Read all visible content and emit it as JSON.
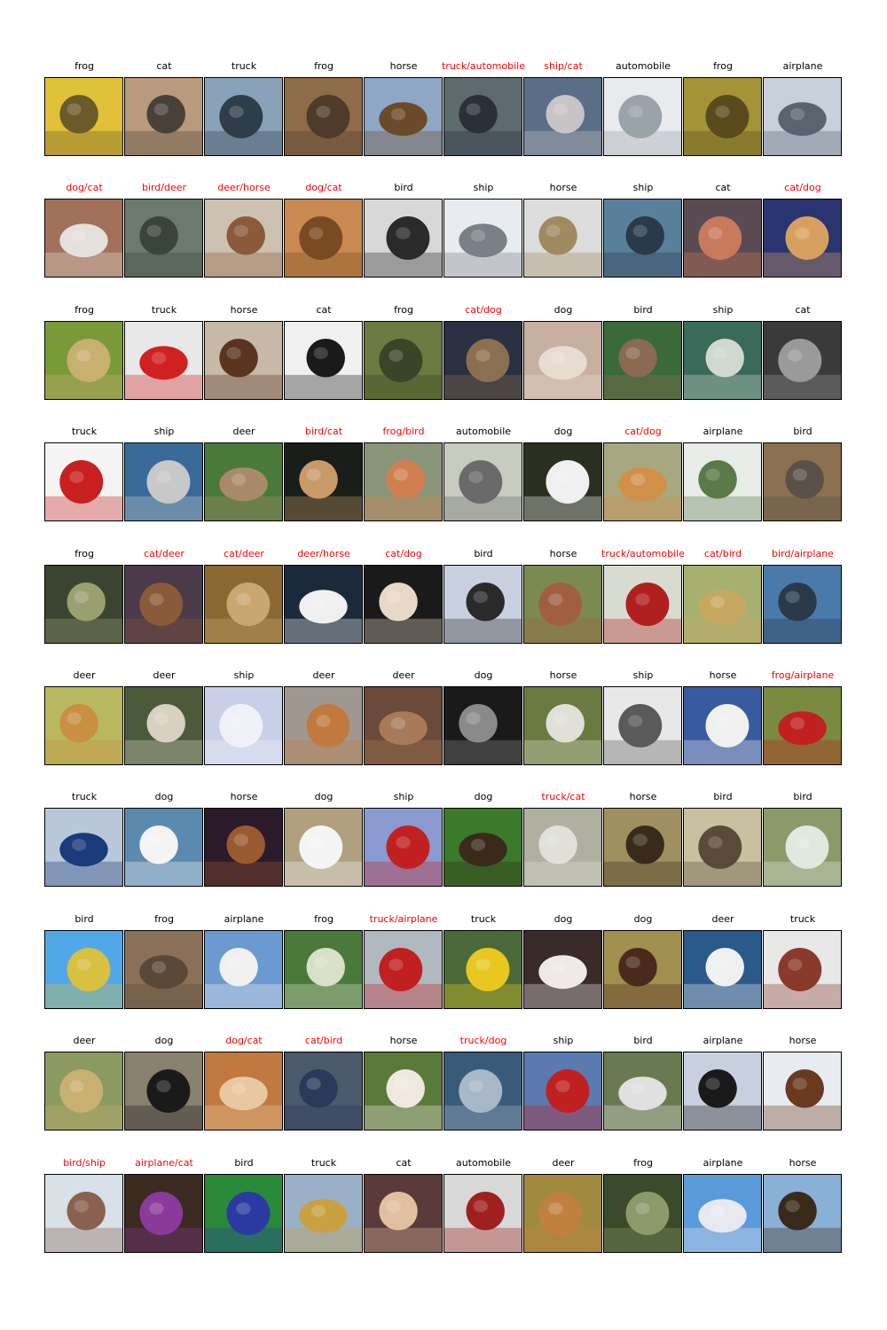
{
  "figure": {
    "mismatch_color": "#ff0000",
    "match_color": "#000000",
    "rows": [
      {
        "labels": [
          "frog",
          "cat",
          "truck",
          "frog",
          "horse",
          "truck/automobile",
          "ship/cat",
          "automobile",
          "frog",
          "airplane"
        ],
        "palette": [
          [
            "#e2c13a",
            "#6b5a2a"
          ],
          [
            "#b89a7c",
            "#4a4038"
          ],
          [
            "#8aa2b8",
            "#2f3d4a"
          ],
          [
            "#8f6c4a",
            "#4e3b2a"
          ],
          [
            "#8fa6c4",
            "#6b4a2a"
          ],
          [
            "#5d6a70",
            "#2a2f3a"
          ],
          [
            "#5a6e86",
            "#c8c4c6"
          ],
          [
            "#e8eaee",
            "#9aa2aa"
          ],
          [
            "#a39438",
            "#5a4a1e"
          ],
          [
            "#c8d0dc",
            "#5a6470"
          ]
        ]
      },
      {
        "labels": [
          "dog/cat",
          "bird/deer",
          "deer/horse",
          "dog/cat",
          "bird",
          "ship",
          "horse",
          "ship",
          "cat",
          "cat/dog"
        ],
        "palette": [
          [
            "#a0705a",
            "#e4e0dc"
          ],
          [
            "#6c7a6e",
            "#3a4438"
          ],
          [
            "#cdc2b2",
            "#8a5a3a"
          ],
          [
            "#c88a50",
            "#7a4a22"
          ],
          [
            "#d8d8d8",
            "#2a2a2a"
          ],
          [
            "#e8ecf0",
            "#7a8088"
          ],
          [
            "#dcdcdc",
            "#a08a60"
          ],
          [
            "#5a7f9a",
            "#2a3a4a"
          ],
          [
            "#5a4a52",
            "#c87a5a"
          ],
          [
            "#2a3470",
            "#d8a060"
          ]
        ]
      },
      {
        "labels": [
          "frog",
          "truck",
          "horse",
          "cat",
          "frog",
          "cat/dog",
          "dog",
          "bird",
          "ship",
          "cat"
        ],
        "palette": [
          [
            "#7a9a3a",
            "#c8b070"
          ],
          [
            "#e8e8e8",
            "#d02020"
          ],
          [
            "#c8b8a8",
            "#5a3420"
          ],
          [
            "#f0f0f0",
            "#1a1a1a"
          ],
          [
            "#6a7a40",
            "#3a4426"
          ],
          [
            "#2a3040",
            "#8a7050"
          ],
          [
            "#c8b0a0",
            "#e8dcd0"
          ],
          [
            "#3a6a3a",
            "#8a6a50"
          ],
          [
            "#3a6a5a",
            "#d0d8d0"
          ],
          [
            "#3a3a3a",
            "#9a9a9a"
          ]
        ]
      },
      {
        "labels": [
          "truck",
          "ship",
          "deer",
          "bird/cat",
          "frog/bird",
          "automobile",
          "dog",
          "cat/dog",
          "airplane",
          "bird"
        ],
        "palette": [
          [
            "#f4f4f4",
            "#c82020"
          ],
          [
            "#3a6a9a",
            "#c8c8c8"
          ],
          [
            "#4a7a3a",
            "#a88a6a"
          ],
          [
            "#1a1e1a",
            "#c89a6a"
          ],
          [
            "#8a9478",
            "#d08050"
          ],
          [
            "#c8ccc0",
            "#6a6a6a"
          ],
          [
            "#2a3020",
            "#f0f0f0"
          ],
          [
            "#a8a880",
            "#d0904a"
          ],
          [
            "#e8ece8",
            "#5a7a4a"
          ],
          [
            "#8a7050",
            "#5a5048"
          ]
        ]
      },
      {
        "labels": [
          "frog",
          "cat/deer",
          "cat/deer",
          "deer/horse",
          "cat/dog",
          "bird",
          "horse",
          "truck/automobile",
          "cat/bird",
          "bird/airplane"
        ],
        "palette": [
          [
            "#3a4430",
            "#9aa070"
          ],
          [
            "#4a3a4a",
            "#8a5a3a"
          ],
          [
            "#8a6a30",
            "#c8a870"
          ],
          [
            "#1a2a3a",
            "#f0f0f0"
          ],
          [
            "#1a1a1a",
            "#e8d8c8"
          ],
          [
            "#c8d0e0",
            "#2a2a2a"
          ],
          [
            "#7a8a50",
            "#a06040"
          ],
          [
            "#d8dcd0",
            "#b02020"
          ],
          [
            "#a8b070",
            "#c8a860"
          ],
          [
            "#4a7aaa",
            "#2a3a4a"
          ]
        ]
      },
      {
        "labels": [
          "deer",
          "deer",
          "ship",
          "deer",
          "deer",
          "dog",
          "horse",
          "ship",
          "horse",
          "frog/airplane"
        ],
        "palette": [
          [
            "#b8b860",
            "#c89040"
          ],
          [
            "#4a5a3a",
            "#d8d0c0"
          ],
          [
            "#c8d0e8",
            "#f0f0f8"
          ],
          [
            "#a09890",
            "#c07a40"
          ],
          [
            "#6a4a3a",
            "#a87a5a"
          ],
          [
            "#1a1a1a",
            "#8a8a8a"
          ],
          [
            "#6a7a40",
            "#e0e0d8"
          ],
          [
            "#e8e8e8",
            "#5a5a5a"
          ],
          [
            "#3a5aa0",
            "#f0f0f0"
          ],
          [
            "#7a8a40",
            "#c02020"
          ]
        ]
      },
      {
        "labels": [
          "truck",
          "dog",
          "horse",
          "dog",
          "ship",
          "dog",
          "truck/cat",
          "horse",
          "bird",
          "bird"
        ],
        "palette": [
          [
            "#b8c8d8",
            "#1a3a7a"
          ],
          [
            "#5a8ab0",
            "#f4f4f4"
          ],
          [
            "#2a1a2a",
            "#9a5a30"
          ],
          [
            "#b0a080",
            "#f4f4f4"
          ],
          [
            "#8a9ad0",
            "#c02020"
          ],
          [
            "#3a7a2a",
            "#3a2a1a"
          ],
          [
            "#b0b0a0",
            "#e0e0d8"
          ],
          [
            "#a09060",
            "#3a2a1a"
          ],
          [
            "#c8c0a0",
            "#5a4a3a"
          ],
          [
            "#8a9a6a",
            "#e0e8e0"
          ]
        ]
      },
      {
        "labels": [
          "bird",
          "frog",
          "airplane",
          "frog",
          "truck/airplane",
          "truck",
          "dog",
          "dog",
          "deer",
          "truck"
        ],
        "palette": [
          [
            "#50a8e8",
            "#d8c040"
          ],
          [
            "#8a7058",
            "#5a4838"
          ],
          [
            "#6a9ad0",
            "#f0f0f0"
          ],
          [
            "#4a7a3a",
            "#d8e0c8"
          ],
          [
            "#b0b8c0",
            "#c02020"
          ],
          [
            "#4a6a3a",
            "#e8c820"
          ],
          [
            "#3a2a2a",
            "#f0e8e8"
          ],
          [
            "#a09050",
            "#4a2a1a"
          ],
          [
            "#2a5a8a",
            "#f0f0f0"
          ],
          [
            "#e8e8e8",
            "#8a3a2a"
          ]
        ]
      },
      {
        "labels": [
          "deer",
          "dog",
          "dog/cat",
          "cat/bird",
          "horse",
          "truck/dog",
          "ship",
          "bird",
          "airplane",
          "horse"
        ],
        "palette": [
          [
            "#8a9a60",
            "#c8b070"
          ],
          [
            "#8a8070",
            "#1a1a1a"
          ],
          [
            "#c07a40",
            "#e8c8a0"
          ],
          [
            "#4a5a6a",
            "#2a3a5a"
          ],
          [
            "#5a7a3a",
            "#f0e8e0"
          ],
          [
            "#3a5a7a",
            "#a8b8c8"
          ],
          [
            "#5a7ab0",
            "#c02020"
          ],
          [
            "#6a7a50",
            "#e0e0e0"
          ],
          [
            "#c8d0e0",
            "#1a1a1a"
          ],
          [
            "#e8ecf0",
            "#6a3a20"
          ]
        ]
      },
      {
        "labels": [
          "bird/ship",
          "airplane/cat",
          "bird",
          "truck",
          "cat",
          "automobile",
          "deer",
          "frog",
          "airplane",
          "horse"
        ],
        "palette": [
          [
            "#d8e0e8",
            "#8a6050"
          ],
          [
            "#3a2a20",
            "#8a3a9a"
          ],
          [
            "#2a8a3a",
            "#2a3aa0"
          ],
          [
            "#9ab0c8",
            "#c8a040"
          ],
          [
            "#5a3a3a",
            "#e0c0a0"
          ],
          [
            "#d8d8d8",
            "#a02020"
          ],
          [
            "#a08a40",
            "#c08040"
          ],
          [
            "#3a4a2a",
            "#8a9a6a"
          ],
          [
            "#5a9ad8",
            "#e8e8f0"
          ],
          [
            "#8ab0d8",
            "#3a2a1a"
          ]
        ]
      }
    ]
  }
}
